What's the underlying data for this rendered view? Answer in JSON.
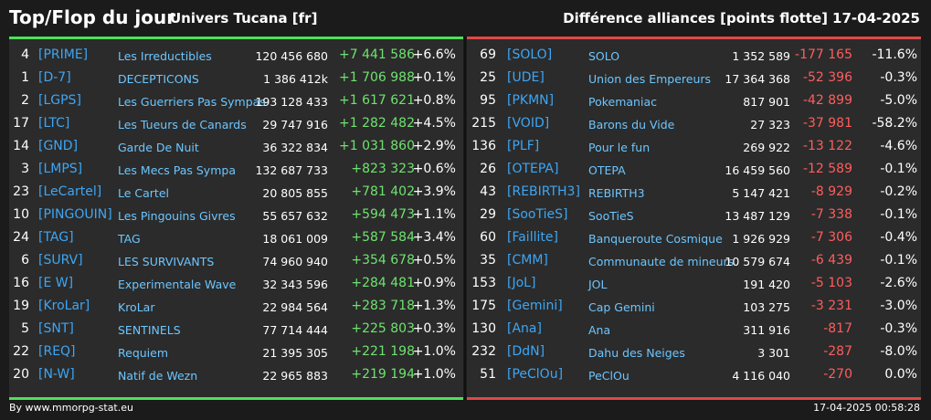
{
  "header": {
    "title": "Top/Flop du jour",
    "subtitle": "Univers Tucana [fr]",
    "right_title": "Différence alliances [points flotte]",
    "date": "17-04-2025"
  },
  "colors": {
    "gain": "#6ee36e",
    "loss": "#ff5d5d",
    "tag": "#3da6f5",
    "top_bar": "#4ee05a",
    "flop_bar": "#e04848"
  },
  "top": [
    {
      "rank": "4",
      "tag": "[PRIME]",
      "name": "Les Irreductibles",
      "points": "120 456 680",
      "diff": "+7 441 586",
      "pct": "+6.6%"
    },
    {
      "rank": "1",
      "tag": "[D-7]",
      "name": "DECEPTICONS",
      "points": "1 386 412k",
      "diff": "+1 706 988",
      "pct": "+0.1%"
    },
    {
      "rank": "2",
      "tag": "[LGPS]",
      "name": "Les Guerriers Pas Sympas",
      "points": "193 128 433",
      "diff": "+1 617 621",
      "pct": "+0.8%"
    },
    {
      "rank": "17",
      "tag": "[LTC]",
      "name": "Les Tueurs de Canards",
      "points": "29 747 916",
      "diff": "+1 282 482",
      "pct": "+4.5%"
    },
    {
      "rank": "14",
      "tag": "[GND]",
      "name": "Garde De Nuit",
      "points": "36 322 834",
      "diff": "+1 031 860",
      "pct": "+2.9%"
    },
    {
      "rank": "3",
      "tag": "[LMPS]",
      "name": "Les Mecs Pas Sympa",
      "points": "132 687 733",
      "diff": "+823 323",
      "pct": "+0.6%"
    },
    {
      "rank": "23",
      "tag": "[LeCartel]",
      "name": "Le Cartel",
      "points": "20 805 855",
      "diff": "+781 402",
      "pct": "+3.9%"
    },
    {
      "rank": "10",
      "tag": "[PINGOUIN]",
      "name": "Les Pingouins Givres",
      "points": "55 657 632",
      "diff": "+594 473",
      "pct": "+1.1%"
    },
    {
      "rank": "24",
      "tag": "[TAG]",
      "name": "TAG",
      "points": "18 061 009",
      "diff": "+587 584",
      "pct": "+3.4%"
    },
    {
      "rank": "6",
      "tag": "[SURV]",
      "name": "LES SURVIVANTS",
      "points": "74 960 940",
      "diff": "+354 678",
      "pct": "+0.5%"
    },
    {
      "rank": "16",
      "tag": "[E W]",
      "name": "Experimentale Wave",
      "points": "32 343 596",
      "diff": "+284 481",
      "pct": "+0.9%"
    },
    {
      "rank": "19",
      "tag": "[KroLar]",
      "name": "KroLar",
      "points": "22 984 564",
      "diff": "+283 718",
      "pct": "+1.3%"
    },
    {
      "rank": "5",
      "tag": "[SNT]",
      "name": "SENTINELS",
      "points": "77 714 444",
      "diff": "+225 803",
      "pct": "+0.3%"
    },
    {
      "rank": "22",
      "tag": "[REQ]",
      "name": "Requiem",
      "points": "21 395 305",
      "diff": "+221 198",
      "pct": "+1.0%"
    },
    {
      "rank": "20",
      "tag": "[N-W]",
      "name": "Natif de Wezn",
      "points": "22 965 883",
      "diff": "+219 194",
      "pct": "+1.0%"
    }
  ],
  "flop": [
    {
      "rank": "69",
      "tag": "[SOLO]",
      "name": "SOLO",
      "points": "1 352 589",
      "diff": "-177 165",
      "pct": "-11.6%"
    },
    {
      "rank": "25",
      "tag": "[UDE]",
      "name": "Union des Empereurs",
      "points": "17 364 368",
      "diff": "-52 396",
      "pct": "-0.3%"
    },
    {
      "rank": "95",
      "tag": "[PKMN]",
      "name": "Pokemaniac",
      "points": "817 901",
      "diff": "-42 899",
      "pct": "-5.0%"
    },
    {
      "rank": "215",
      "tag": "[VOID]",
      "name": "Barons du Vide",
      "points": "27 323",
      "diff": "-37 981",
      "pct": "-58.2%"
    },
    {
      "rank": "136",
      "tag": "[PLF]",
      "name": "Pour le fun",
      "points": "269 922",
      "diff": "-13 122",
      "pct": "-4.6%"
    },
    {
      "rank": "26",
      "tag": "[OTEPA]",
      "name": "OTEPA",
      "points": "16 459 560",
      "diff": "-12 589",
      "pct": "-0.1%"
    },
    {
      "rank": "43",
      "tag": "[REBIRTH3]",
      "name": "REBIRTH3",
      "points": "5 147 421",
      "diff": "-8 929",
      "pct": "-0.2%"
    },
    {
      "rank": "29",
      "tag": "[SooTieS]",
      "name": "SooTieS",
      "points": "13 487 129",
      "diff": "-7 338",
      "pct": "-0.1%"
    },
    {
      "rank": "60",
      "tag": "[Faillite]",
      "name": "Banqueroute Cosmique",
      "points": "1 926 929",
      "diff": "-7 306",
      "pct": "-0.4%"
    },
    {
      "rank": "35",
      "tag": "[CMM]",
      "name": "Communaute de mineurs",
      "points": "10 579 674",
      "diff": "-6 439",
      "pct": "-0.1%"
    },
    {
      "rank": "153",
      "tag": "[JoL]",
      "name": "JOL",
      "points": "191 420",
      "diff": "-5 103",
      "pct": "-2.6%"
    },
    {
      "rank": "175",
      "tag": "[Gemini]",
      "name": "Cap Gemini",
      "points": "103 275",
      "diff": "-3 231",
      "pct": "-3.0%"
    },
    {
      "rank": "130",
      "tag": "[Ana]",
      "name": "Ana",
      "points": "311 916",
      "diff": "-817",
      "pct": "-0.3%"
    },
    {
      "rank": "232",
      "tag": "[DdN]",
      "name": "Dahu des Neiges",
      "points": "3 301",
      "diff": "-287",
      "pct": "-8.0%"
    },
    {
      "rank": "51",
      "tag": "[PeClOu]",
      "name": "PeClOu",
      "points": "4 116 040",
      "diff": "-270",
      "pct": "0.0%"
    }
  ],
  "footer": {
    "source": "By www.mmorpg-stat.eu",
    "timestamp": "17-04-2025 00:58:28"
  }
}
